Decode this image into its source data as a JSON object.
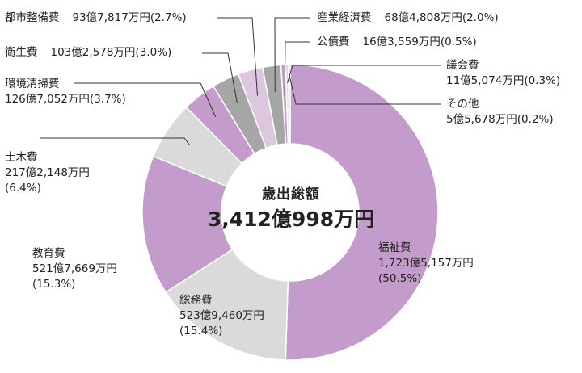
{
  "chart_data": {
    "type": "pie",
    "title": "歳出総額",
    "total": "3,412億998万円",
    "categories": [
      "福祉費",
      "総務費",
      "教育費",
      "土木費",
      "環境清掃費",
      "衛生費",
      "都市整備費",
      "産業経済費",
      "公債費",
      "議会費",
      "その他"
    ],
    "values": [
      50.5,
      15.4,
      15.3,
      6.4,
      3.7,
      3.0,
      2.7,
      2.0,
      0.5,
      0.3,
      0.2
    ],
    "amounts": [
      "1,723億5,157万円",
      "523億9,460万円",
      "521億7,669万円",
      "217億2,148万円",
      "126億7,052万円",
      "103億2,578万円",
      "93億7,817万円",
      "68億4,808万円",
      "16億3,559万円",
      "11億5,074万円",
      "5億5,678万円"
    ],
    "percent_labels": [
      "(50.5%)",
      "(15.4%)",
      "(15.3%)",
      "(6.4%)",
      "(3.7%)",
      "(3.0%)",
      "(2.7%)",
      "(2.0%)",
      "(0.5%)",
      "(0.3%)",
      "(0.2%)"
    ],
    "colors": [
      "#c49ccb",
      "#dadada",
      "#c49ccb",
      "#dadada",
      "#c49ccb",
      "#a6a6a6",
      "#dcc6e0",
      "#a6a6a6",
      "#c49ccb",
      "#dadada",
      "#c49ccb"
    ]
  }
}
